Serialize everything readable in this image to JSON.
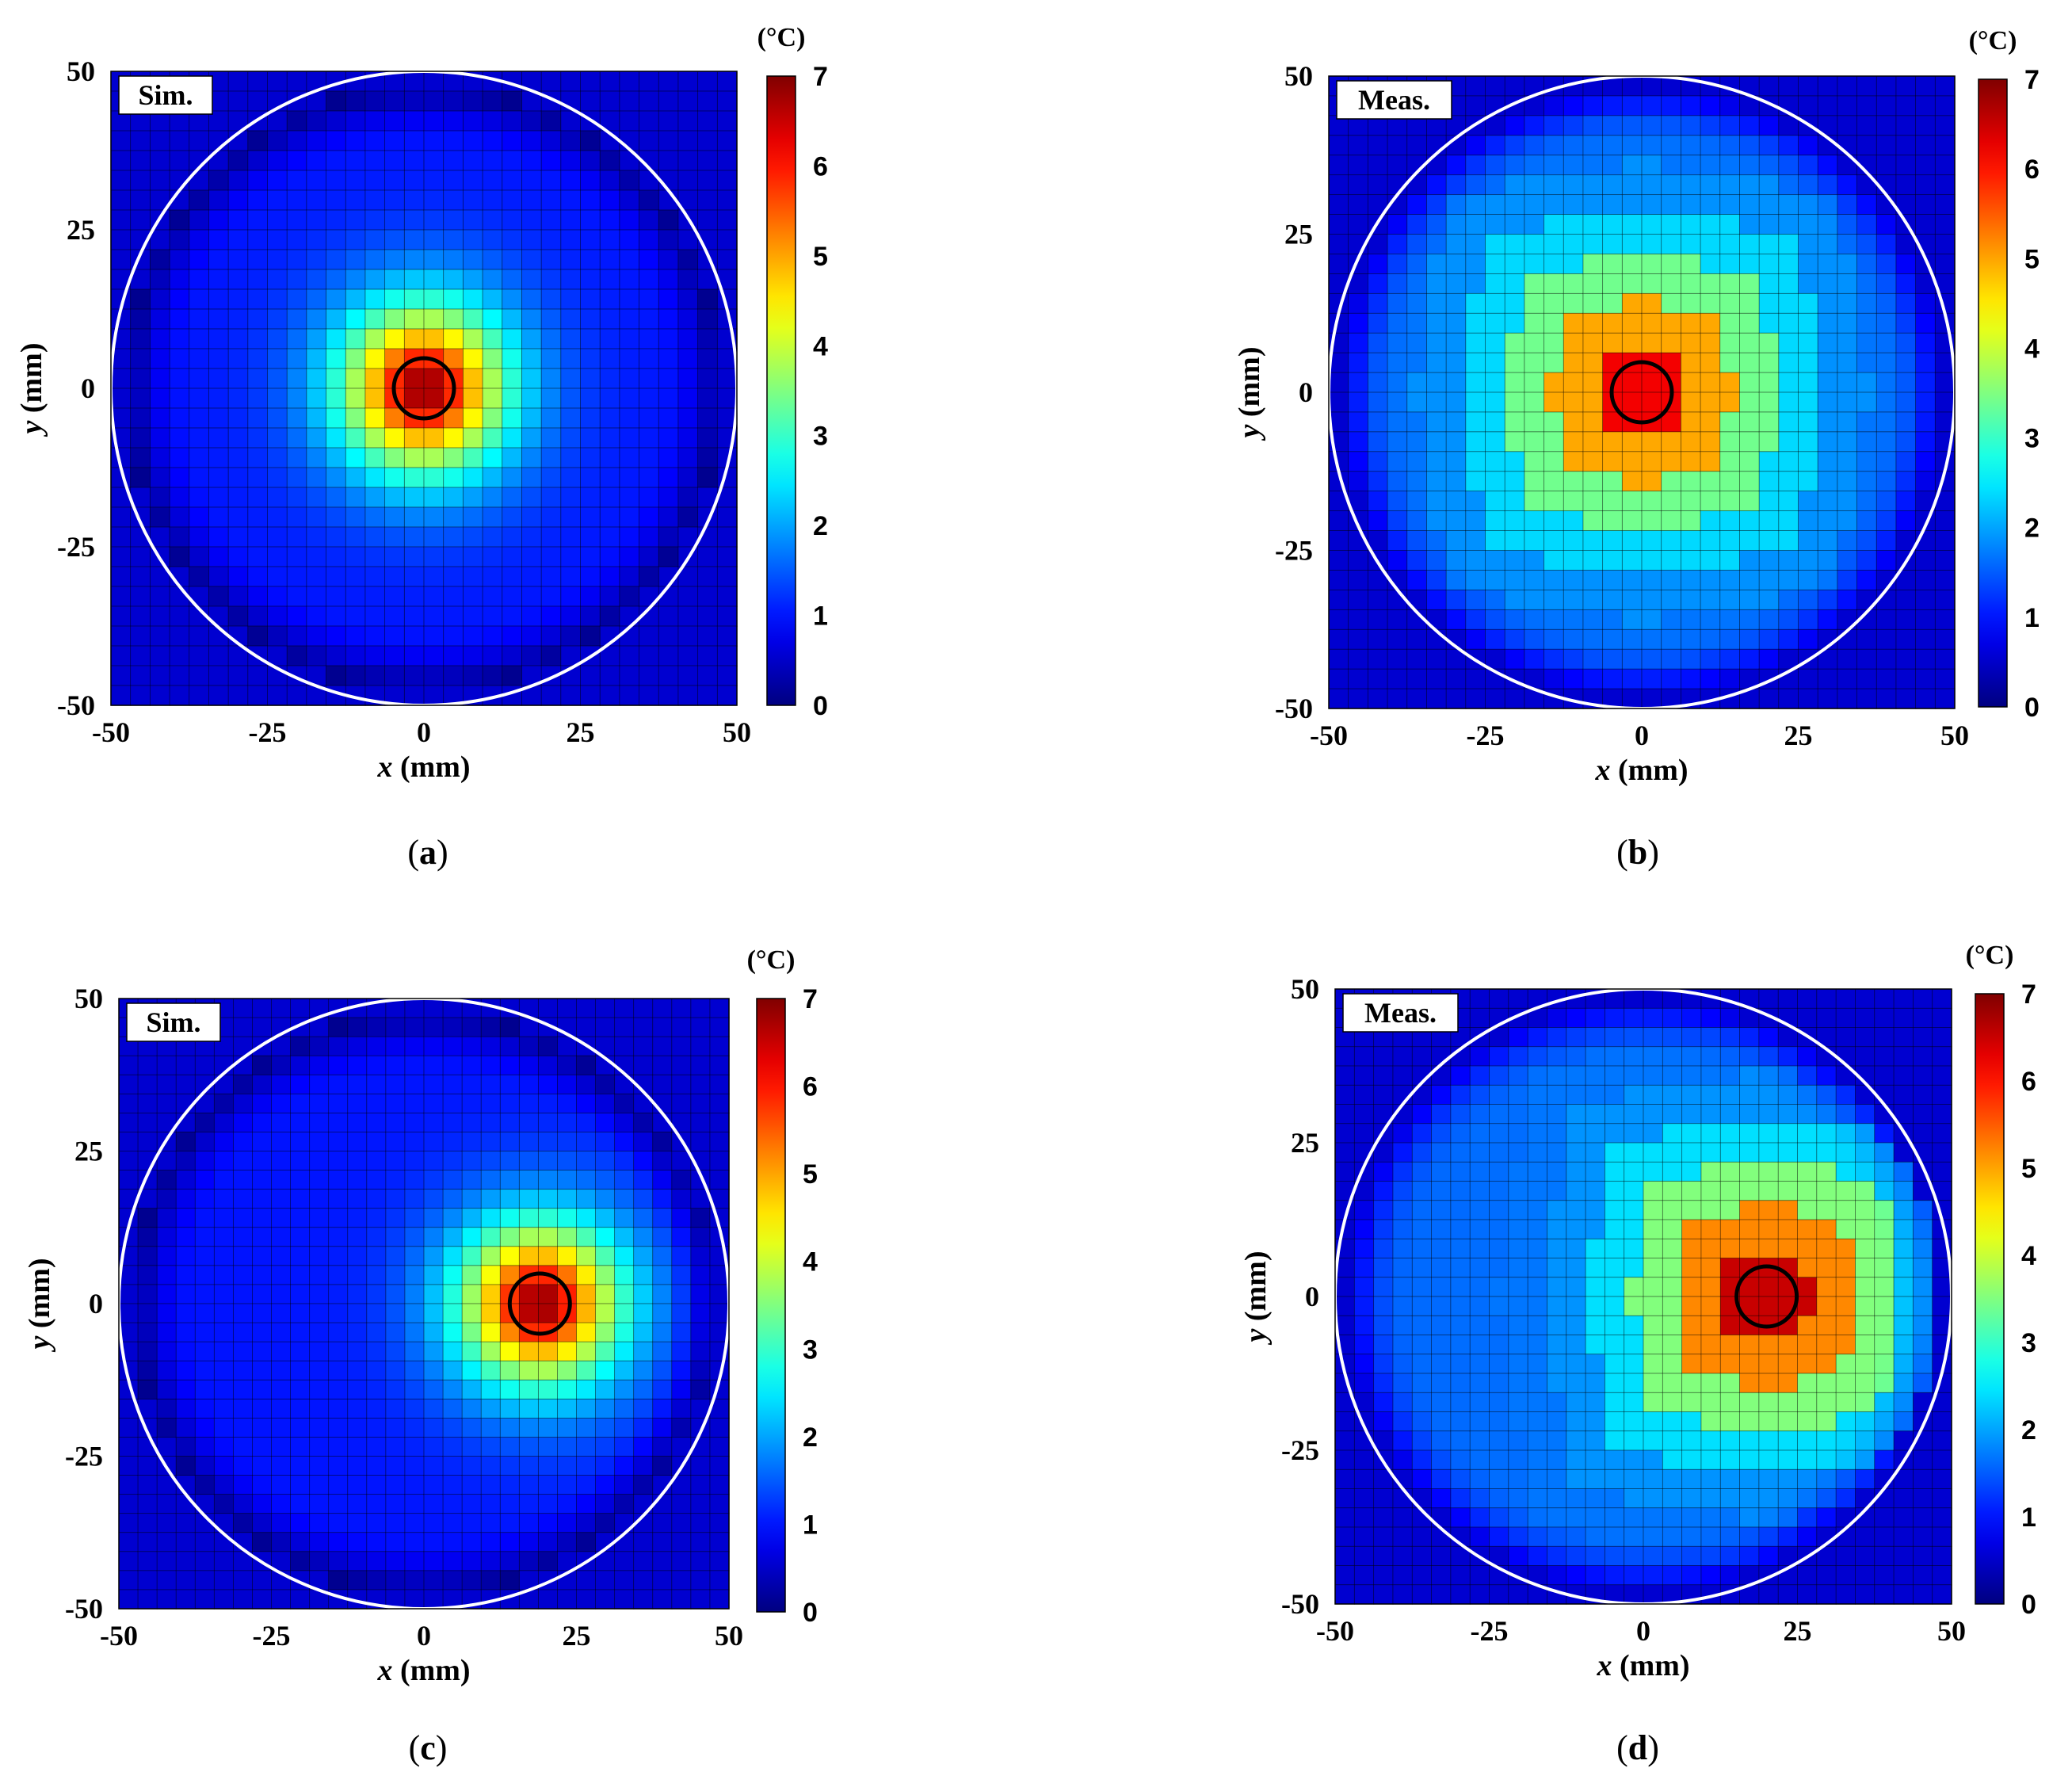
{
  "chart_data": [
    {
      "type": "heatmap",
      "panel": "(a)",
      "caption_letter": "a",
      "tag": "Sim.",
      "kind": "sim",
      "xlabel_var": "x",
      "xlabel_unit": " (mm)",
      "ylabel_var": "y",
      "ylabel_unit": " (mm)",
      "xlim": [
        -50,
        50
      ],
      "ylim": [
        -50,
        50
      ],
      "xticks": [
        "-50",
        "-25",
        "0",
        "25",
        "50"
      ],
      "yticks": [
        "50",
        "25",
        "0",
        "-25",
        "-50"
      ],
      "grid_cells": 32,
      "source_center_mm": [
        0,
        0
      ],
      "colorbar_unit": "(°C)",
      "colorbar_range": [
        0,
        7
      ],
      "colorbar_ticks": [
        "0",
        "1",
        "2",
        "3",
        "4",
        "5",
        "6",
        "7"
      ],
      "peak_value": 7,
      "rim_value": 1
    },
    {
      "type": "heatmap",
      "panel": "(b)",
      "caption_letter": "b",
      "tag": "Meas.",
      "kind": "meas",
      "xlabel_var": "x",
      "xlabel_unit": " (mm)",
      "ylabel_var": "y",
      "ylabel_unit": " (mm)",
      "xlim": [
        -50,
        50
      ],
      "ylim": [
        -50,
        50
      ],
      "xticks": [
        "-50",
        "-25",
        "0",
        "25",
        "50"
      ],
      "yticks": [
        "50",
        "25",
        "0",
        "-25",
        "-50"
      ],
      "grid_cells": 32,
      "source_center_mm": [
        0,
        0
      ],
      "colorbar_unit": "(°C)",
      "colorbar_range": [
        0,
        7
      ],
      "colorbar_ticks": [
        "0",
        "1",
        "2",
        "3",
        "4",
        "5",
        "6",
        "7"
      ],
      "peak_value": 6.2,
      "rim_value": 1.6
    },
    {
      "type": "heatmap",
      "panel": "(c)",
      "caption_letter": "c",
      "tag": "Sim.",
      "kind": "sim",
      "xlabel_var": "x",
      "xlabel_unit": " (mm)",
      "ylabel_var": "y",
      "ylabel_unit": " (mm)",
      "xlim": [
        -50,
        50
      ],
      "ylim": [
        -50,
        50
      ],
      "xticks": [
        "-50",
        "-25",
        "0",
        "25",
        "50"
      ],
      "yticks": [
        "50",
        "25",
        "0",
        "-25",
        "-50"
      ],
      "grid_cells": 32,
      "source_center_mm": [
        19,
        0
      ],
      "colorbar_unit": "(°C)",
      "colorbar_range": [
        0,
        7
      ],
      "colorbar_ticks": [
        "0",
        "1",
        "2",
        "3",
        "4",
        "5",
        "6",
        "7"
      ],
      "peak_value": 7,
      "rim_value": 1
    },
    {
      "type": "heatmap",
      "panel": "(d)",
      "caption_letter": "d",
      "tag": "Meas.",
      "kind": "meas",
      "xlabel_var": "x",
      "xlabel_unit": " (mm)",
      "ylabel_var": "y",
      "ylabel_unit": " (mm)",
      "xlim": [
        -50,
        50
      ],
      "ylim": [
        -50,
        50
      ],
      "xticks": [
        "-50",
        "-25",
        "0",
        "25",
        "50"
      ],
      "yticks": [
        "50",
        "25",
        "0",
        "-25",
        "-50"
      ],
      "grid_cells": 32,
      "source_center_mm": [
        20,
        0
      ],
      "colorbar_unit": "(°C)",
      "colorbar_range": [
        0,
        7
      ],
      "colorbar_ticks": [
        "0",
        "1",
        "2",
        "3",
        "4",
        "5",
        "6",
        "7"
      ],
      "peak_value": 6.5,
      "rim_value": 1.6
    }
  ]
}
